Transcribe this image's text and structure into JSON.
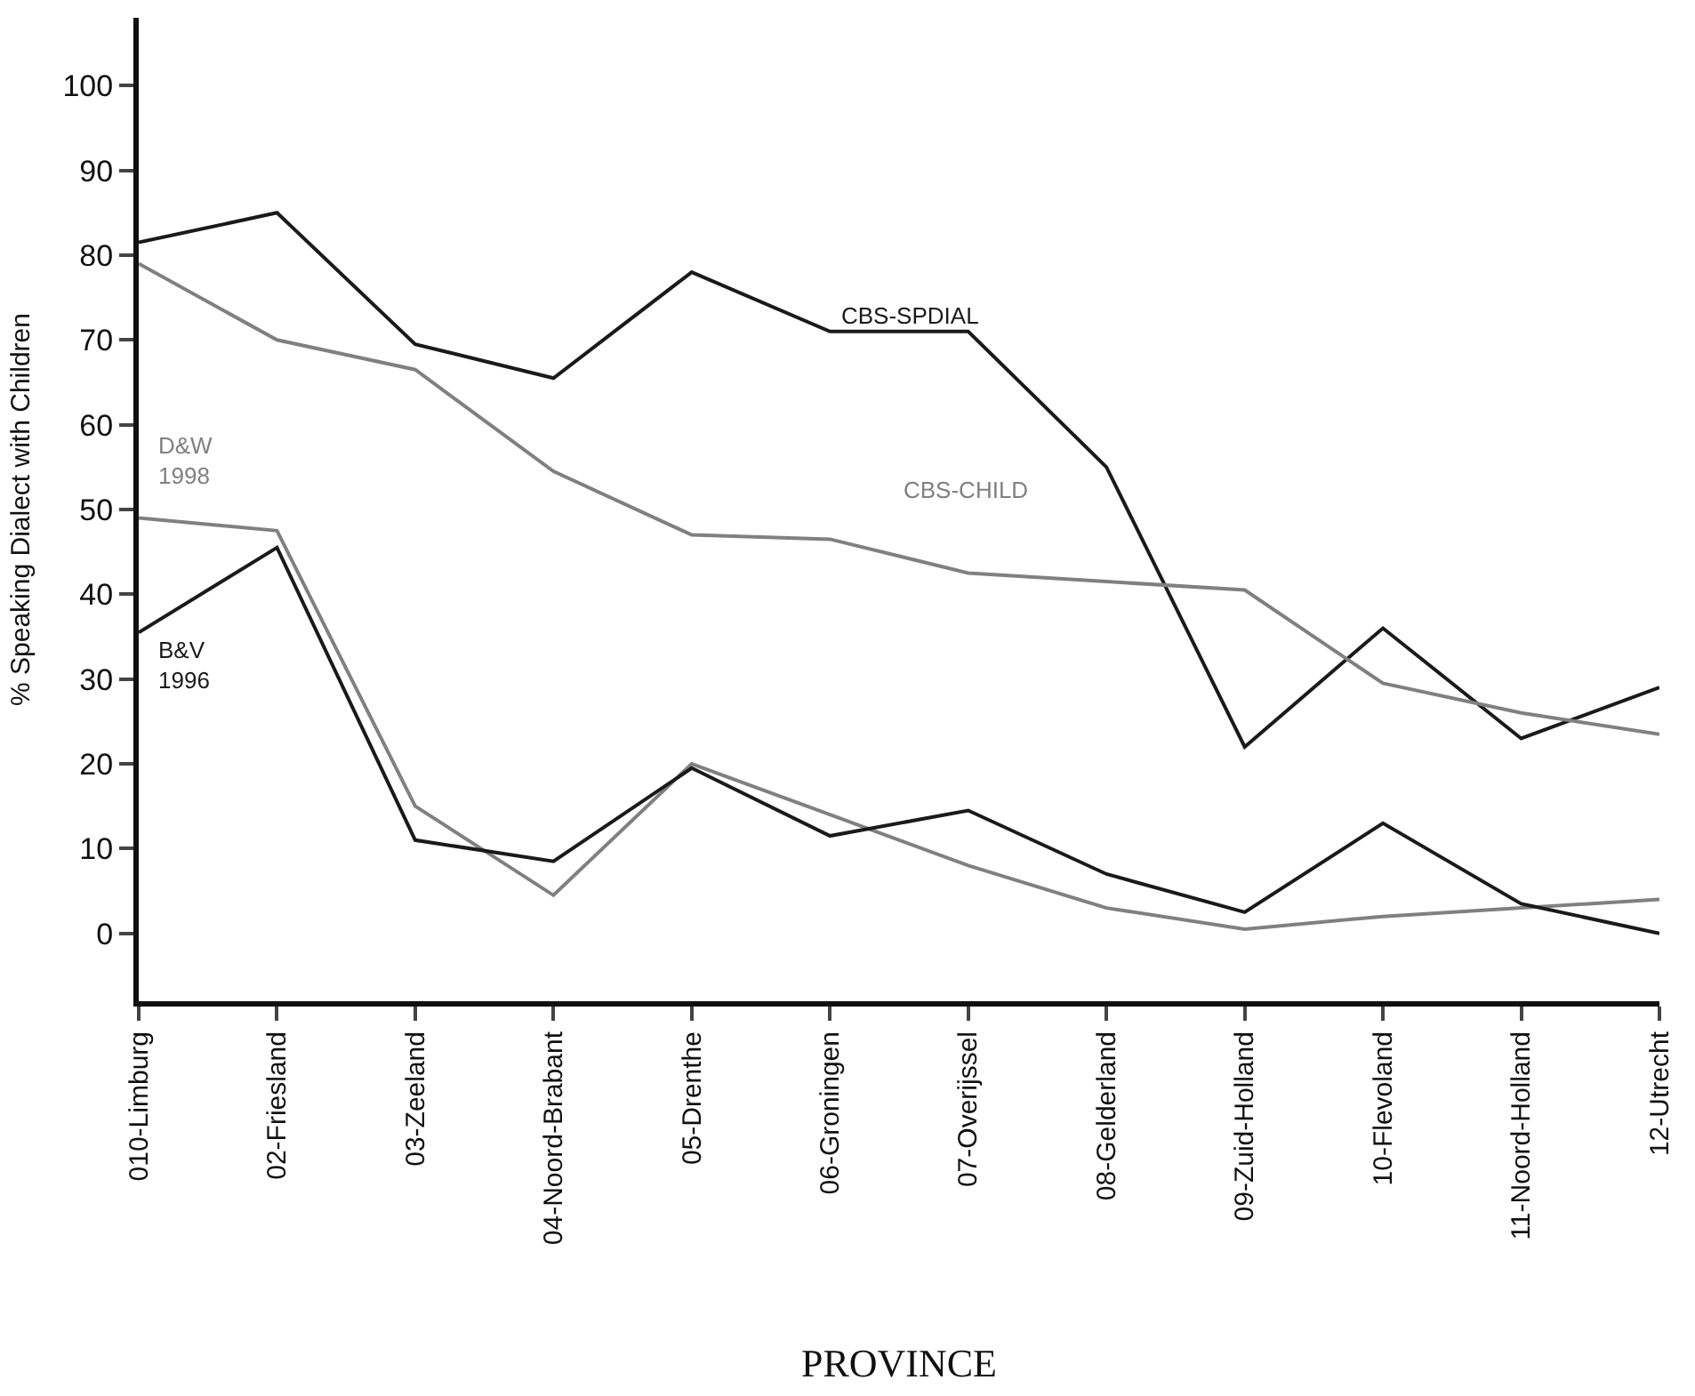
{
  "chart_data": {
    "type": "line",
    "xlabel": "PROVINCE",
    "ylabel": "% Speaking Dialect with Children",
    "categories": [
      "010-Limburg",
      "02-Friesland",
      "03-Zeeland",
      "04-Noord-Brabant",
      "05-Drenthe",
      "06-Groningen",
      "07-Overijssel",
      "08-Gelderland",
      "09-Zuid-Holland",
      "10-Flevoland",
      "11-Noord-Holland",
      "12-Utrecht"
    ],
    "series": [
      {
        "name": "CBS-SPDIAL",
        "color": "#1a1a1a",
        "values": [
          81.5,
          85,
          69.5,
          65.5,
          78,
          71,
          71,
          55,
          22,
          36,
          23,
          29
        ]
      },
      {
        "name": "CBS-CHILD",
        "color": "#808080",
        "values": [
          79,
          70,
          66.5,
          54.5,
          47,
          46.5,
          42.5,
          41.5,
          40.5,
          29.5,
          26,
          23.5
        ]
      },
      {
        "name": "D&W 1998",
        "color": "#808080",
        "values": [
          49,
          47.5,
          15,
          4.5,
          20,
          14,
          8,
          3,
          0.5,
          2,
          3,
          4
        ]
      },
      {
        "name": "B&V 1996",
        "color": "#1a1a1a",
        "values": [
          35.5,
          45.5,
          11,
          8.5,
          19.5,
          11.5,
          14.5,
          7,
          2.5,
          13,
          3.5,
          0
        ]
      }
    ],
    "ylim": [
      -8,
      108
    ],
    "yticks": [
      0,
      10,
      20,
      30,
      40,
      50,
      60,
      70,
      80,
      90,
      100
    ],
    "legend": false,
    "marker": "none",
    "line_style": "solid"
  }
}
